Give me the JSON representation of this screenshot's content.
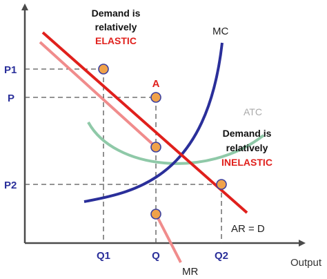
{
  "labels": {
    "y_ticks": {
      "p1": "P1",
      "p": "P",
      "p2": "P2"
    },
    "x_ticks": {
      "q1": "Q1",
      "q": "Q",
      "q2": "Q2"
    },
    "x_axis": "Output",
    "point_a": "A",
    "curves": {
      "mc": "MC",
      "atc": "ATC",
      "mr": "MR",
      "ar_d": "AR = D"
    },
    "elastic_note": {
      "line1": "Demand is",
      "line2": "relatively",
      "line3": "ELASTIC"
    },
    "inelastic_note": {
      "line1": "Demand is",
      "line2": "relatively",
      "line3": "INELASTIC"
    }
  },
  "colors": {
    "axis": "#4a4a4a",
    "demand": "#e0201c",
    "mr": "#f08c8c",
    "mc": "#2a2f9a",
    "atc": "#8fc9a8",
    "marker_fill": "#f0a24a",
    "marker_stroke": "#3a3fa0",
    "tick_label": "#2a2f9a",
    "red_text": "#e0201c",
    "atc_label": "#a9a9a9",
    "dashed": "#555555"
  }
}
